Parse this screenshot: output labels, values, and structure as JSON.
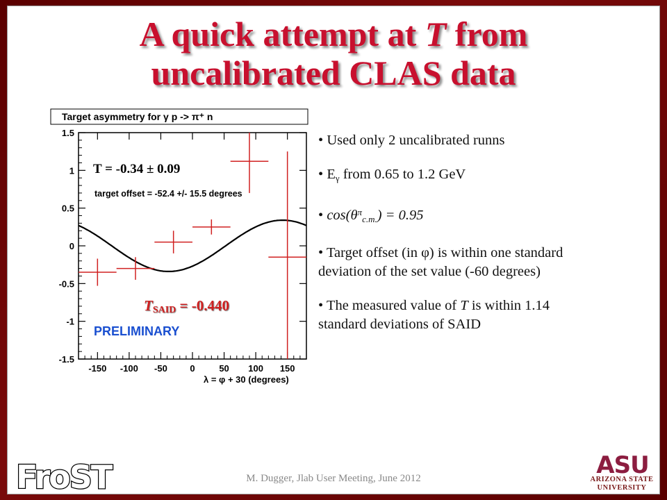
{
  "slide": {
    "title_line1_pre": "A quick attempt at ",
    "title_line1_var": "T",
    "title_line1_post": " from",
    "title_line2": "uncalibrated CLAS data"
  },
  "plot": {
    "header": "Target asymmetry for γ p -> π⁺ n",
    "t_result": "T = -0.34 ± 0.09",
    "offset_text": "target offset = -52.4 +/- 15.5 degrees",
    "said_T": "T",
    "said_sub": "SAID",
    "said_value": " = -0.440",
    "preliminary": "PRELIMINARY",
    "xlabel": "λ = φ + 30 (degrees)"
  },
  "chart_data": {
    "type": "scatter",
    "title": "Target asymmetry for γ p -> π⁺ n",
    "xlabel": "λ = φ + 30 (degrees)",
    "ylabel": "",
    "xlim": [
      -180,
      180
    ],
    "ylim": [
      -1.5,
      1.5
    ],
    "x_ticks": [
      -150,
      -100,
      -50,
      0,
      50,
      100,
      150
    ],
    "y_ticks": [
      -1.5,
      -1,
      -0.5,
      0,
      0.5,
      1,
      1.5
    ],
    "y_tick_labels": [
      "-1.5",
      "-1",
      "-0.5",
      "0",
      "0.5",
      "1",
      "1.5"
    ],
    "series": [
      {
        "x": [
          -150,
          -90,
          -30,
          30,
          90,
          150
        ],
        "y": [
          -0.35,
          -0.3,
          0.05,
          0.25,
          1.12,
          -0.15
        ],
        "x_err": [
          30,
          30,
          30,
          30,
          30,
          30
        ],
        "y_err": [
          0.18,
          0.15,
          0.15,
          0.1,
          0.42,
          1.4
        ]
      }
    ],
    "fit": {
      "amplitude": 0.34,
      "offset_deg": -52.4
    },
    "grid": false
  },
  "bullets": [
    {
      "text": "Used only 2 uncalibrated runns"
    },
    {
      "pre": "E",
      "sub": "γ",
      "post": " from 0.65 to 1.2 GeV"
    },
    {
      "pre": "cos(θ",
      "sup": "π",
      "sub": "c.m.",
      "post": ") = 0.95"
    },
    {
      "text": "Target offset (in φ) is within one standard deviation of the set value (-60 degrees)"
    },
    {
      "pre": "The measured value of ",
      "ital": "T",
      "post": " is within 1.14 standard deviations of SAID"
    }
  ],
  "footer": "M. Dugger, Jlab User Meeting, June 2012",
  "logos": {
    "frost": "FroST",
    "asu_mark": "ASU",
    "asu_line1": "ARIZONA STATE",
    "asu_line2": "UNIVERSITY"
  },
  "colors": {
    "title": "#c8102e",
    "border": "#5a0000",
    "data_points": "#d02020",
    "fit_curve": "#000000",
    "said_text": "#d02020",
    "preliminary": "#1a4fd0",
    "asu": "#8c1d40"
  }
}
